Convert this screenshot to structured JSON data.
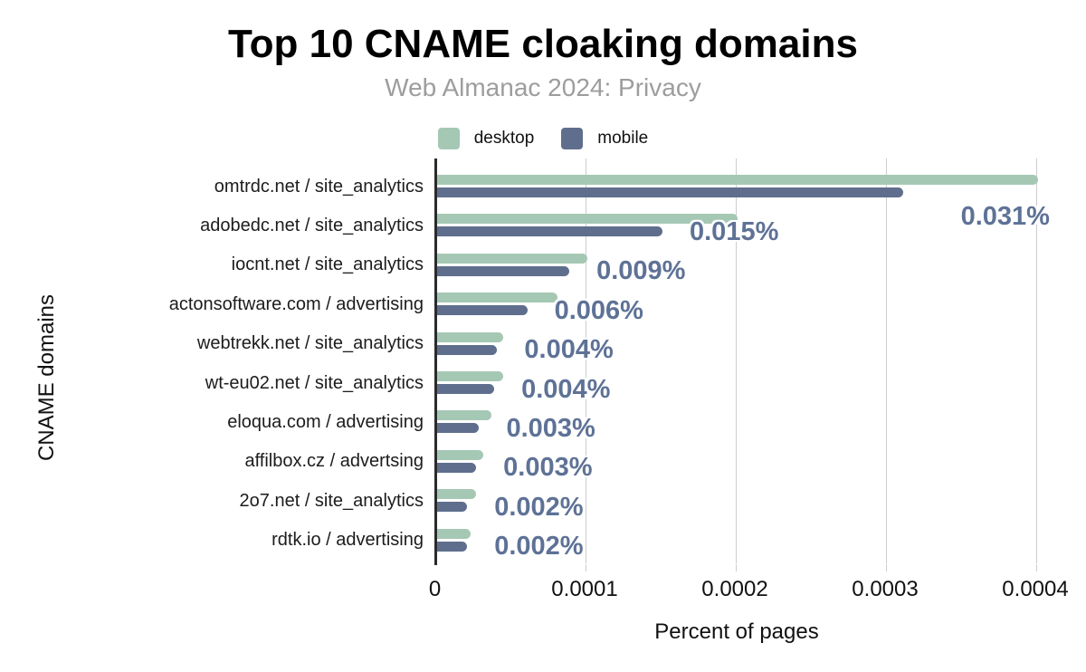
{
  "header": {
    "title": "Top 10 CNAME cloaking domains",
    "subtitle": "Web Almanac 2024: Privacy"
  },
  "legend": {
    "items": [
      {
        "label": "desktop",
        "color": "#a5c8b5"
      },
      {
        "label": "mobile",
        "color": "#5f6e8d"
      }
    ]
  },
  "colors": {
    "desktop_bar": "#a5c8b5",
    "mobile_bar": "#5f6e8d",
    "value_label": "#5e7296",
    "gridline": "#cccccc",
    "axis_line": "#2b2b2b",
    "subtitle_text": "#9d9d9d"
  },
  "chart_data": {
    "type": "bar",
    "orientation": "horizontal",
    "title": "Top 10 CNAME cloaking domains",
    "subtitle": "Web Almanac 2024: Privacy",
    "categories": [
      "omtrdc.net / site_analytics",
      "adobedc.net / site_analytics",
      "iocnt.net / site_analytics",
      "actonsoftware.com / advertising",
      "webtrekk.net / site_analytics",
      "wt-eu02.net / site_analytics",
      "eloqua.com / advertising",
      "affilbox.cz / advertsing",
      "2o7.net / site_analytics",
      "rdtk.io / advertising"
    ],
    "series": [
      {
        "name": "desktop",
        "color": "#a5c8b5",
        "values": [
          0.0004,
          0.0002,
          0.0001,
          8e-05,
          4.4e-05,
          4.4e-05,
          3.6e-05,
          3.1e-05,
          2.6e-05,
          2.2e-05
        ]
      },
      {
        "name": "mobile",
        "color": "#5f6e8d",
        "values": [
          0.00031,
          0.00015,
          8.8e-05,
          6e-05,
          4e-05,
          3.8e-05,
          2.8e-05,
          2.6e-05,
          2e-05,
          2e-05
        ]
      }
    ],
    "data_labels": {
      "attached_to": "mobile",
      "color": "#5e7296",
      "values": [
        "0.031%",
        "0.015%",
        "0.009%",
        "0.006%",
        "0.004%",
        "0.004%",
        "0.003%",
        "0.003%",
        "0.002%",
        "0.002%"
      ]
    },
    "xlabel": "Percent of pages",
    "ylabel": "CNAME domains",
    "xlim": [
      0,
      0.0004
    ],
    "x_ticks": [
      0,
      0.0001,
      0.0002,
      0.0003,
      0.0004
    ],
    "x_tick_labels": [
      "0",
      "0.0001",
      "0.0002",
      "0.0003",
      "0.0004"
    ],
    "grid": "vertical",
    "legend_position": "top"
  }
}
